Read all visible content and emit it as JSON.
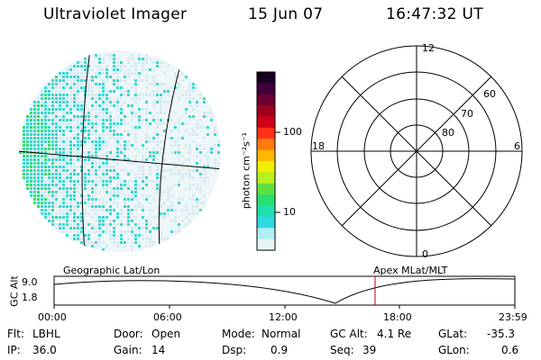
{
  "header": {
    "title": "Ultraviolet Imager",
    "date": "15 Jun 07",
    "time": "16:47:32 UT"
  },
  "colors": {
    "image_low": "#d6eaf2",
    "image_cyan": "#38d8d0",
    "image_green": "#2fe06a",
    "cursor_line": "#c80000"
  },
  "colorbar": {
    "unit_label": "photon cm⁻²s⁻¹",
    "ticks": [
      "100",
      "10"
    ],
    "scale": "log",
    "colors_top_to_bottom": [
      "#1a0020",
      "#40003a",
      "#6a0030",
      "#a00020",
      "#d00018",
      "#ff3018",
      "#ff7a10",
      "#ffb800",
      "#f0f000",
      "#b8f020",
      "#60e040",
      "#28e070",
      "#20e0b0",
      "#30d8e0",
      "#b0eef0",
      "#e8f4f6"
    ]
  },
  "polar_plot": {
    "mlt_labels": {
      "top": "12",
      "left": "18",
      "right": "6",
      "bottom": "0"
    },
    "lat_labels": [
      "60",
      "70",
      "80"
    ]
  },
  "geo_overlay_label": "Geographic Lat/Lon",
  "apex_overlay_label": "Apex MLat/MLT",
  "altitude_panel": {
    "axis_label": "GC Alt",
    "y_ticks": [
      "9.0",
      "1.8"
    ],
    "x_ticks": [
      "00:00",
      "06:00",
      "12:00",
      "18:00",
      "23:59"
    ]
  },
  "metadata": {
    "filter_label": "Flt:",
    "filter_value": "LBHL",
    "ip_label": "IP:",
    "ip_value": "36.0",
    "door_label": "Door:",
    "door_value": "Open",
    "gain_label": "Gain:",
    "gain_value": "14",
    "mode_label": "Mode:",
    "mode_value": "Normal",
    "dsp_label": "Dsp:",
    "dsp_value": "0.9",
    "gcalt_label": "GC Alt:",
    "gcalt_value": "4.1 Re",
    "seq_label": "Seq:",
    "seq_value": "39",
    "glat_label": "GLat:",
    "glat_value": "-35.3",
    "glon_label": "GLon:",
    "glon_value": "0.6"
  }
}
